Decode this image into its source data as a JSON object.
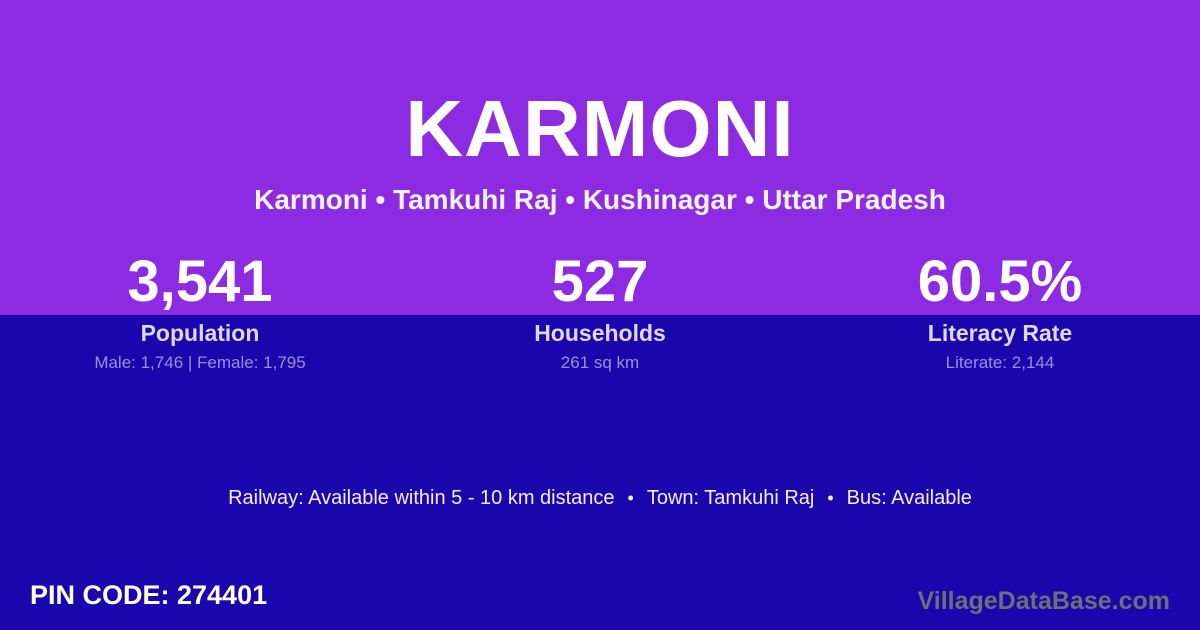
{
  "colors": {
    "top_background": "#8D2BE2",
    "bottom_background": "#1A06AC",
    "primary_text": "#FFFFFF",
    "stat_label_text": "#DED9F0",
    "stat_detail_text": "#9C90D8",
    "brand_text": "#6E6E78"
  },
  "header": {
    "title": "KARMONI",
    "breadcrumb": "Karmoni • Tamkuhi Raj • Kushinagar • Uttar Pradesh"
  },
  "stats": [
    {
      "value": "3,541",
      "label": "Population",
      "detail": "Male: 1,746 | Female: 1,795"
    },
    {
      "value": "527",
      "label": "Households",
      "detail": "261 sq km"
    },
    {
      "value": "60.5%",
      "label": "Literacy Rate",
      "detail": "Literate: 2,144"
    }
  ],
  "info": {
    "bullet": "•",
    "segments": [
      "Railway: Available within 5 - 10 km distance",
      "Town: Tamkuhi Raj",
      "Bus: Available"
    ]
  },
  "footer": {
    "pin_code": "PIN CODE: 274401",
    "brand": "VillageDataBase.com"
  }
}
